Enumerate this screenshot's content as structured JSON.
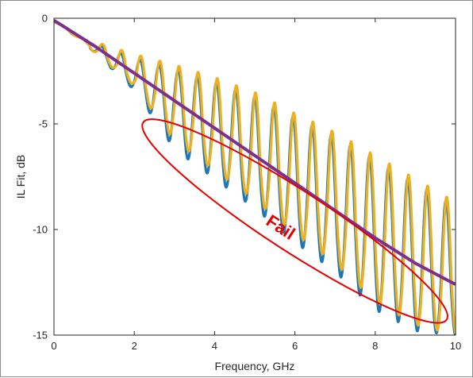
{
  "chart_data": {
    "type": "line",
    "title": "",
    "xlabel": "Frequency, GHz",
    "ylabel": "IL Fit, dB",
    "xlim": [
      0,
      10
    ],
    "ylim": [
      -15,
      0
    ],
    "xticks": [
      "0",
      "2",
      "4",
      "6",
      "8",
      "10"
    ],
    "yticks": [
      "0",
      "-5",
      "-10",
      "-15"
    ],
    "grid": false,
    "colors": {
      "series_blue": "#1f77b4",
      "series_gold": "#edb120",
      "fit_line": "#7e2f8e",
      "annotation": "#e60000"
    },
    "series": [
      {
        "description": "blue measured insertion loss with resonant ripple",
        "color": "#1f77b4",
        "x": [
          0,
          1,
          2,
          3,
          4,
          5,
          6,
          7,
          8,
          9,
          10
        ],
        "envelope_mean": [
          -0.1,
          -1.4,
          -2.8,
          -4.2,
          -5.5,
          -6.8,
          -8.0,
          -9.3,
          -10.5,
          -11.7,
          -12.6
        ],
        "ripple_min": [
          -0.1,
          -1.6,
          -3.4,
          -6.2,
          -7.6,
          -9.0,
          -10.6,
          -12.0,
          -13.8,
          -14.8,
          -15.0
        ],
        "ripple_max": [
          0,
          -1.2,
          -1.9,
          -2.4,
          -3.0,
          -3.7,
          -4.7,
          -5.6,
          -6.7,
          -7.8,
          -8.9
        ]
      },
      {
        "description": "gold measured insertion loss with resonant ripple",
        "color": "#edb120",
        "x": [
          0,
          1,
          2,
          3,
          4,
          5,
          6,
          7,
          8,
          9,
          10
        ],
        "envelope_mean": [
          -0.1,
          -1.4,
          -2.8,
          -4.2,
          -5.5,
          -6.8,
          -8.0,
          -9.3,
          -10.5,
          -11.7,
          -12.6
        ],
        "ripple_min": [
          -0.1,
          -1.6,
          -3.2,
          -5.8,
          -7.2,
          -8.6,
          -10.2,
          -11.6,
          -13.4,
          -14.5,
          -15.0
        ],
        "ripple_max": [
          0,
          -1.1,
          -1.7,
          -2.2,
          -2.8,
          -3.5,
          -4.5,
          -5.4,
          -6.5,
          -7.6,
          -8.7
        ]
      },
      {
        "description": "purple IL fit line",
        "color": "#7e2f8e",
        "x": [
          0,
          1,
          2,
          3,
          4,
          5,
          6,
          7,
          8,
          9,
          10
        ],
        "y": [
          -0.1,
          -1.3,
          -2.6,
          -3.9,
          -5.2,
          -6.5,
          -7.8,
          -9.1,
          -10.4,
          -11.6,
          -12.6
        ]
      }
    ],
    "annotations": [
      {
        "text": "Fail",
        "color": "#e60000",
        "shape": "ellipse",
        "center_data": [
          6.0,
          -9.6
        ],
        "rotation_deg": 33
      }
    ]
  }
}
